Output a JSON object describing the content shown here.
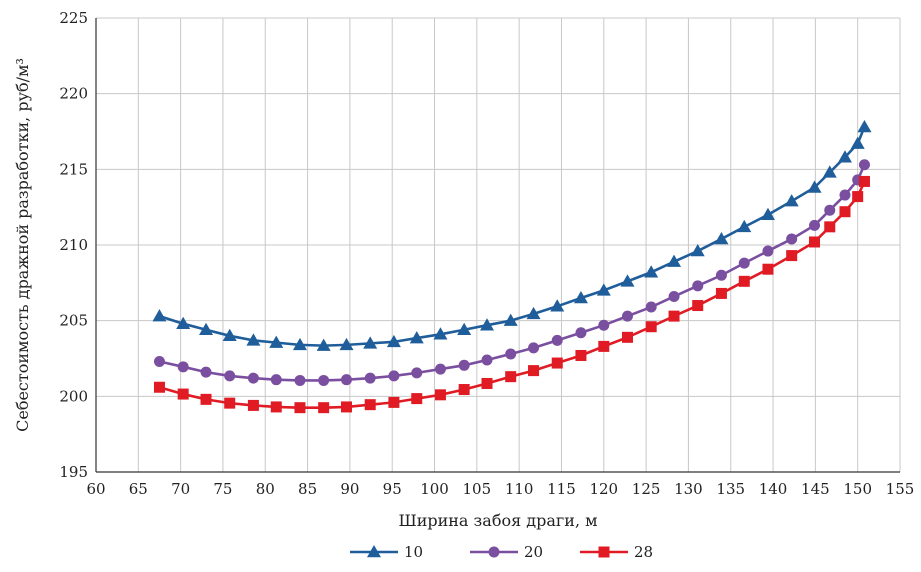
{
  "chart_data": {
    "type": "line",
    "title": "",
    "xlabel": "Ширина забоя драги, м",
    "ylabel": "Себестоимость дражной разработки, руб/м³",
    "xlim": [
      60,
      155
    ],
    "ylim": [
      195,
      225
    ],
    "xticks": [
      60,
      65,
      70,
      75,
      80,
      85,
      90,
      95,
      100,
      105,
      110,
      115,
      120,
      125,
      130,
      135,
      140,
      145,
      150,
      155
    ],
    "yticks": [
      195,
      200,
      205,
      210,
      215,
      220,
      225
    ],
    "grid": true,
    "legend_position": "bottom",
    "x": [
      67.5,
      70.3,
      73.0,
      75.8,
      78.6,
      81.3,
      84.1,
      86.9,
      89.6,
      92.4,
      95.2,
      97.9,
      100.7,
      103.5,
      106.2,
      109.0,
      111.7,
      114.5,
      117.3,
      120.0,
      122.8,
      125.6,
      128.3,
      131.1,
      133.9,
      136.6,
      139.4,
      142.2,
      144.9,
      146.7,
      148.5,
      150.0,
      150.8
    ],
    "series": [
      {
        "name": "10",
        "color": "#1f5e9a",
        "marker": "triangle",
        "values": [
          205.3,
          204.8,
          204.4,
          204.0,
          203.7,
          203.55,
          203.4,
          203.35,
          203.4,
          203.5,
          203.6,
          203.85,
          204.1,
          204.4,
          204.7,
          205.0,
          205.45,
          205.95,
          206.5,
          207.0,
          207.6,
          208.2,
          208.9,
          209.6,
          210.4,
          211.2,
          212.0,
          212.9,
          213.8,
          214.8,
          215.8,
          216.7,
          217.8
        ]
      },
      {
        "name": "20",
        "color": "#7b4fa0",
        "marker": "circle",
        "values": [
          202.3,
          201.95,
          201.6,
          201.35,
          201.2,
          201.1,
          201.05,
          201.05,
          201.1,
          201.2,
          201.35,
          201.55,
          201.8,
          202.05,
          202.4,
          202.8,
          203.2,
          203.7,
          204.2,
          204.7,
          205.3,
          205.9,
          206.6,
          207.3,
          208.0,
          208.8,
          209.6,
          210.4,
          211.3,
          212.3,
          213.3,
          214.3,
          215.3
        ]
      },
      {
        "name": "28",
        "color": "#e01b24",
        "marker": "square",
        "values": [
          200.6,
          200.15,
          199.8,
          199.55,
          199.4,
          199.3,
          199.25,
          199.25,
          199.3,
          199.45,
          199.6,
          199.85,
          200.1,
          200.45,
          200.85,
          201.3,
          201.7,
          202.2,
          202.7,
          203.3,
          203.9,
          204.6,
          205.3,
          206.0,
          206.8,
          207.6,
          208.4,
          209.3,
          210.2,
          211.2,
          212.2,
          213.2,
          214.2
        ]
      }
    ]
  }
}
